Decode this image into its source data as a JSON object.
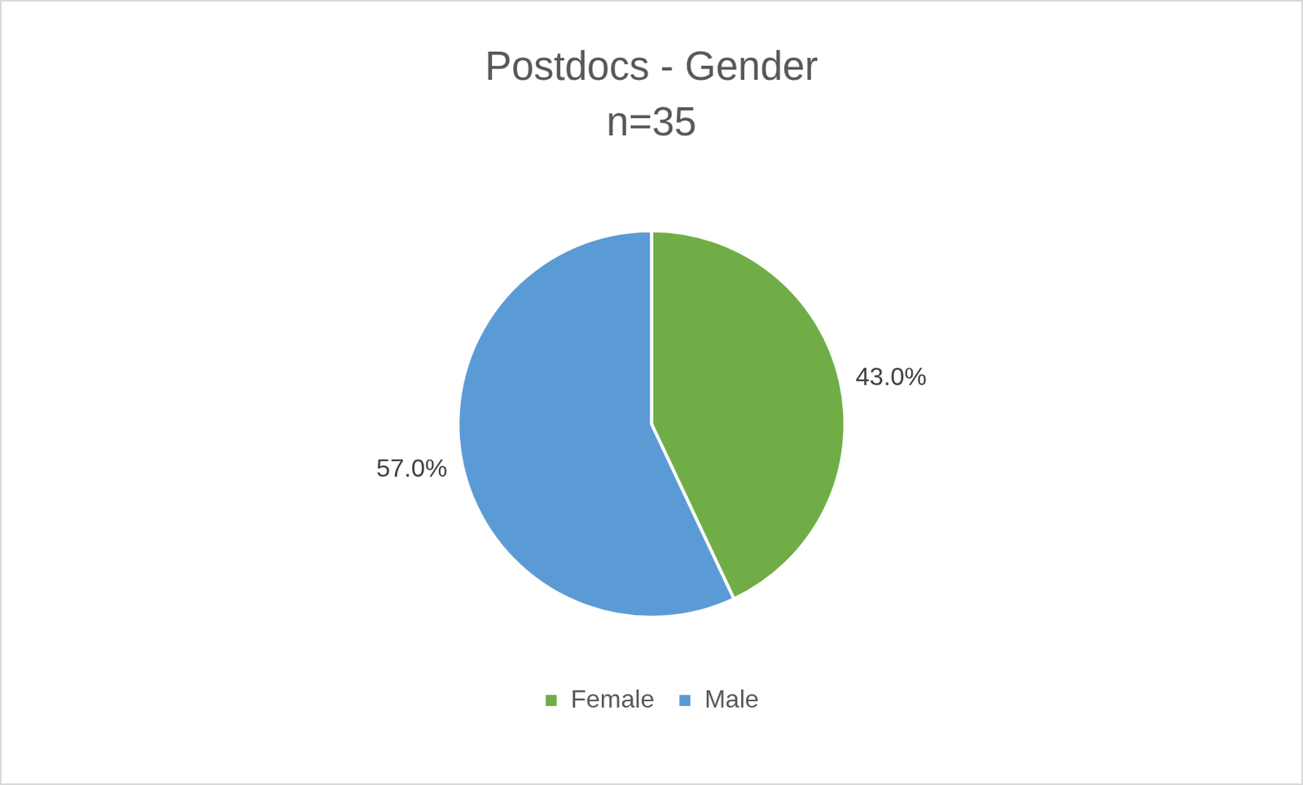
{
  "chart_data": {
    "type": "pie",
    "title": "Postdocs - Gender",
    "subtitle": "n=35",
    "categories": [
      "Female",
      "Male"
    ],
    "values": [
      43.0,
      57.0
    ],
    "value_labels": [
      "43.0%",
      "57.0%"
    ],
    "colors": [
      "#70ad47",
      "#5b9bd5"
    ],
    "legend": "bottom",
    "data_labels": true
  }
}
